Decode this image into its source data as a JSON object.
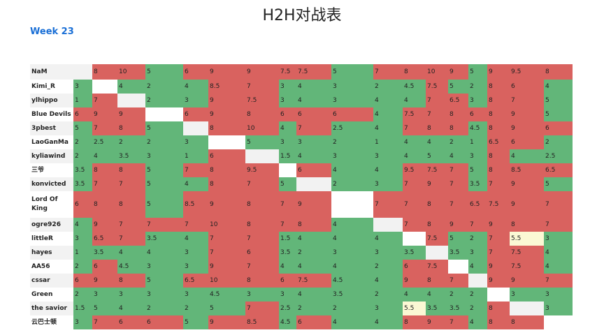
{
  "title": "H2H对战表",
  "week": "Week 23",
  "players": [
    "NaM",
    "Kimi_R",
    "ylhippo",
    "Blue Devils",
    "3pbest",
    "LaoGanMa",
    "kyliawind",
    "三爷",
    "konvicted",
    "Lord Of King",
    "ogre926",
    "littleR",
    "hayes",
    "AA56",
    "cssar",
    "Green",
    "the savior",
    "云巴士顿"
  ],
  "colors": {
    "win": "#d9625f",
    "loss": "#62b679",
    "tie": "#fbf8d4",
    "self": "#ffffff"
  },
  "matrix": [
    [
      "",
      "8",
      "10",
      "5",
      "6",
      "9",
      "9",
      "7.5",
      "7.5",
      "5",
      "7",
      "8",
      "10",
      "9",
      "5",
      "9",
      "9.5",
      "8"
    ],
    [
      "3",
      "",
      "4",
      "2",
      "4",
      "8.5",
      "7",
      "3",
      "4",
      "3",
      "2",
      "4.5",
      "7.5",
      "5",
      "2",
      "8",
      "6",
      "4"
    ],
    [
      "1",
      "7",
      "",
      "2",
      "3",
      "9",
      "7.5",
      "3",
      "4",
      "3",
      "4",
      "4",
      "7",
      "6.5",
      "3",
      "8",
      "7",
      "5"
    ],
    [
      "6",
      "9",
      "9",
      "",
      "6",
      "9",
      "8",
      "6",
      "6",
      "6",
      "4",
      "7.5",
      "7",
      "8",
      "6",
      "8",
      "9",
      "5"
    ],
    [
      "5",
      "7",
      "8",
      "5",
      "",
      "8",
      "10",
      "4",
      "7",
      "2.5",
      "4",
      "7",
      "8",
      "8",
      "4.5",
      "8",
      "9",
      "6"
    ],
    [
      "2",
      "2.5",
      "2",
      "2",
      "3",
      "",
      "5",
      "3",
      "3",
      "2",
      "1",
      "4",
      "4",
      "2",
      "1",
      "6.5",
      "6",
      "2"
    ],
    [
      "2",
      "4",
      "3.5",
      "3",
      "1",
      "6",
      "",
      "1.5",
      "4",
      "3",
      "3",
      "4",
      "5",
      "4",
      "3",
      "8",
      "4",
      "2.5"
    ],
    [
      "3.5",
      "8",
      "8",
      "5",
      "7",
      "8",
      "9.5",
      "",
      "6",
      "4",
      "4",
      "9.5",
      "7.5",
      "7",
      "5",
      "8",
      "8.5",
      "6.5"
    ],
    [
      "3.5",
      "7",
      "7",
      "5",
      "4",
      "8",
      "7",
      "5",
      "",
      "2",
      "3",
      "7",
      "9",
      "7",
      "3.5",
      "7",
      "9",
      "5"
    ],
    [
      "6",
      "8",
      "8",
      "5",
      "8.5",
      "9",
      "8",
      "7",
      "9",
      "",
      "7",
      "7",
      "8",
      "7",
      "6.5",
      "7.5",
      "9",
      "7"
    ],
    [
      "4",
      "9",
      "7",
      "7",
      "7",
      "10",
      "8",
      "7",
      "8",
      "4",
      "",
      "7",
      "8",
      "9",
      "7",
      "9",
      "8",
      "7"
    ],
    [
      "3",
      "6.5",
      "7",
      "3.5",
      "4",
      "7",
      "7",
      "1.5",
      "4",
      "4",
      "4",
      "",
      "7.5",
      "5",
      "2",
      "7",
      "5.5",
      "3"
    ],
    [
      "1",
      "3.5",
      "4",
      "4",
      "3",
      "7",
      "6",
      "3.5",
      "2",
      "3",
      "3",
      "3.5",
      "",
      "3.5",
      "3",
      "7",
      "7.5",
      "4"
    ],
    [
      "2",
      "6",
      "4.5",
      "3",
      "3",
      "9",
      "7",
      "4",
      "4",
      "4",
      "2",
      "6",
      "7.5",
      "",
      "4",
      "9",
      "7.5",
      "4"
    ],
    [
      "6",
      "9",
      "8",
      "5",
      "6.5",
      "10",
      "8",
      "6",
      "7.5",
      "4.5",
      "4",
      "9",
      "8",
      "7",
      "",
      "9",
      "9",
      "7"
    ],
    [
      "2",
      "3",
      "3",
      "3",
      "3",
      "4.5",
      "3",
      "3",
      "4",
      "3.5",
      "2",
      "4",
      "4",
      "2",
      "2",
      "",
      "3",
      "3"
    ],
    [
      "1.5",
      "5",
      "4",
      "2",
      "2",
      "5",
      "7",
      "2.5",
      "2",
      "2",
      "3",
      "5.5",
      "3.5",
      "3.5",
      "2",
      "8",
      "",
      "3"
    ],
    [
      "3",
      "7",
      "6",
      "6",
      "5",
      "9",
      "8.5",
      "4.5",
      "6",
      "4",
      "4",
      "8",
      "9",
      "7",
      "4",
      "8",
      "8",
      ""
    ]
  ]
}
